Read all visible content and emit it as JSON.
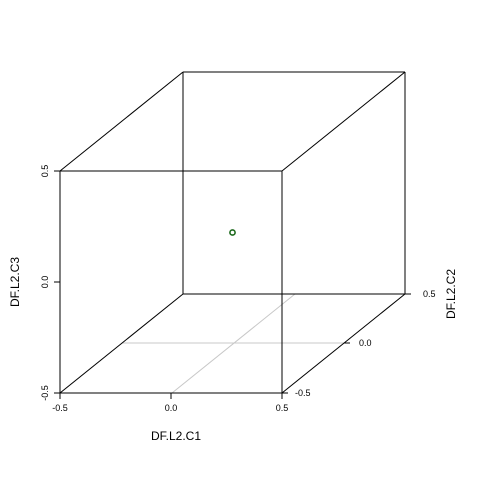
{
  "chart_data": {
    "type": "scatter",
    "title": "",
    "xlabel": "DF.L2.C1",
    "ylabel": "DF.L2.C2",
    "zlabel": "DF.L2.C3",
    "xlim": [
      -0.5,
      0.5
    ],
    "ylim": [
      -0.5,
      0.5
    ],
    "zlim": [
      -0.5,
      0.5
    ],
    "x_ticks": [
      "-0.5",
      "0.0",
      "0.5"
    ],
    "y_ticks": [
      "-0.5",
      "0.0",
      "0.5"
    ],
    "z_ticks": [
      "-0.5",
      "0.0",
      "0.5"
    ],
    "grid": "floor",
    "legend": "none",
    "points": [
      {
        "x": 0.0,
        "y": 0.0,
        "z": 0.0
      }
    ],
    "colors": {
      "point_stroke": "#1f6b1f",
      "point_fill": "#ffffff",
      "box": "#000000",
      "floor_grid": "#c8c8c8"
    }
  }
}
